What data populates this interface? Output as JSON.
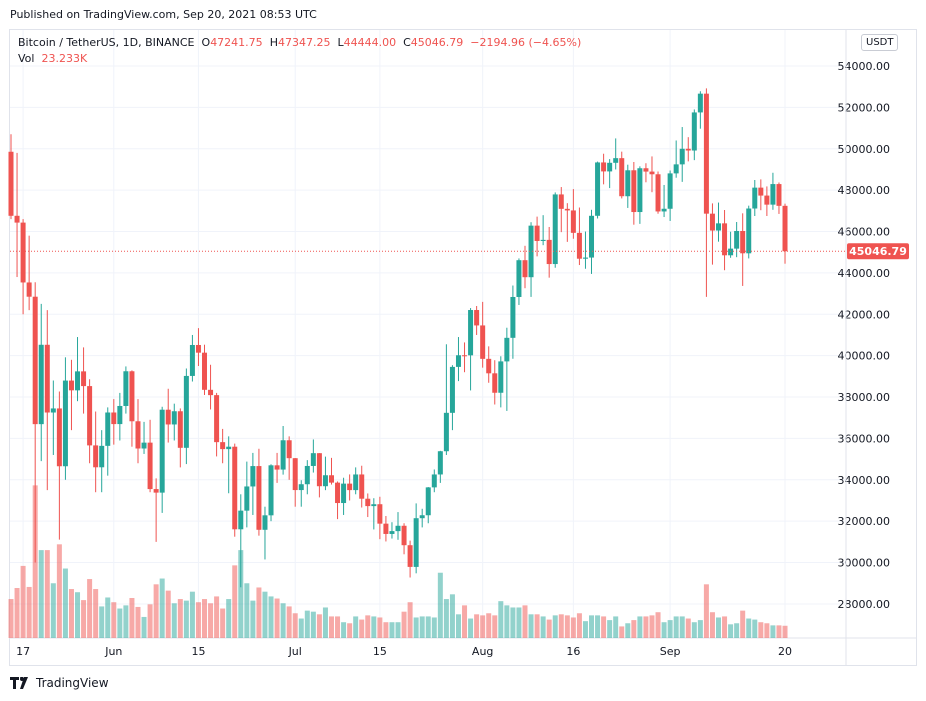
{
  "header": {
    "published": "Published on TradingView.com, Sep 20, 2021 08:53 UTC"
  },
  "legend": {
    "symbol": "Bitcoin / TetherUS, 1D, BINANCE",
    "o_label": "O",
    "o": "47241.75",
    "h_label": "H",
    "h": "47347.25",
    "l_label": "L",
    "l": "44444.00",
    "c_label": "C",
    "c": "45046.79",
    "change": "−2194.96 (−4.65%)",
    "vol_label": "Vol",
    "vol": "23.233K"
  },
  "currency_button": "USDT",
  "last_price_label": "45046.79",
  "brand": "TradingView",
  "colors": {
    "up": "#26a69a",
    "down": "#ef5350",
    "grid": "#f0f3fa"
  },
  "chart_data": {
    "type": "candlestick",
    "title": "Bitcoin / TetherUS, 1D, BINANCE",
    "ylim": [
      26500,
      55000
    ],
    "y_ticks": [
      28000,
      30000,
      32000,
      34000,
      36000,
      38000,
      40000,
      42000,
      44000,
      46000,
      48000,
      50000,
      52000,
      54000
    ],
    "x_ticks": [
      {
        "date": "2021-05-17",
        "label": "17"
      },
      {
        "date": "2021-06-01",
        "label": "Jun"
      },
      {
        "date": "2021-06-15",
        "label": "15"
      },
      {
        "date": "2021-07-01",
        "label": "Jul"
      },
      {
        "date": "2021-07-15",
        "label": "15"
      },
      {
        "date": "2021-08-01",
        "label": "Aug"
      },
      {
        "date": "2021-08-16",
        "label": "16"
      },
      {
        "date": "2021-09-01",
        "label": "Sep"
      },
      {
        "date": "2021-09-20",
        "label": "20"
      }
    ],
    "grid": true,
    "last_price": 45046.79,
    "columns": [
      "date",
      "open",
      "high",
      "low",
      "close",
      "volume_k"
    ],
    "candles": [
      [
        "2021-05-15",
        49855,
        50700,
        46600,
        46760,
        74
      ],
      [
        "2021-05-16",
        46760,
        49800,
        43800,
        46431,
        95
      ],
      [
        "2021-05-17",
        46431,
        46600,
        42000,
        43538,
        137
      ],
      [
        "2021-05-18",
        43538,
        45800,
        42200,
        42849,
        97
      ],
      [
        "2021-05-19",
        42849,
        43546,
        30000,
        36690,
        290
      ],
      [
        "2021-05-20",
        36690,
        42500,
        34900,
        40526,
        167
      ],
      [
        "2021-05-21",
        40526,
        42200,
        33500,
        37252,
        167
      ],
      [
        "2021-05-22",
        37252,
        38800,
        35200,
        37449,
        104
      ],
      [
        "2021-05-23",
        37449,
        38270,
        31111,
        34655,
        178
      ],
      [
        "2021-05-24",
        34655,
        39920,
        34000,
        38796,
        132
      ],
      [
        "2021-05-25",
        38796,
        39800,
        36400,
        38324,
        93
      ],
      [
        "2021-05-26",
        38324,
        40900,
        37800,
        39241,
        87
      ],
      [
        "2021-05-27",
        39241,
        40400,
        37200,
        38529,
        72
      ],
      [
        "2021-05-28",
        38529,
        38860,
        34800,
        35663,
        112
      ],
      [
        "2021-05-29",
        35663,
        37300,
        33400,
        34605,
        93
      ],
      [
        "2021-05-30",
        34605,
        36400,
        33400,
        35641,
        60
      ],
      [
        "2021-05-31",
        35641,
        37500,
        34200,
        37253,
        77
      ],
      [
        "2021-06-01",
        37253,
        37900,
        35700,
        36693,
        68
      ],
      [
        "2021-06-02",
        36693,
        38200,
        35900,
        37568,
        56
      ],
      [
        "2021-06-03",
        37568,
        39480,
        37200,
        39246,
        62
      ],
      [
        "2021-06-04",
        39246,
        39290,
        35600,
        36829,
        76
      ],
      [
        "2021-06-05",
        36829,
        37900,
        34800,
        35513,
        59
      ],
      [
        "2021-06-06",
        35513,
        36800,
        35250,
        35796,
        40
      ],
      [
        "2021-06-07",
        35796,
        36900,
        33400,
        33552,
        64
      ],
      [
        "2021-06-08",
        33552,
        34070,
        31000,
        33380,
        102
      ],
      [
        "2021-06-09",
        33380,
        37530,
        32400,
        37388,
        113
      ],
      [
        "2021-06-10",
        37388,
        38400,
        35800,
        36675,
        90
      ],
      [
        "2021-06-11",
        36675,
        37680,
        35900,
        37313,
        66
      ],
      [
        "2021-06-12",
        37313,
        37450,
        34600,
        35546,
        74
      ],
      [
        "2021-06-13",
        35546,
        39380,
        34760,
        39020,
        71
      ],
      [
        "2021-06-14",
        39020,
        41000,
        38750,
        40516,
        88
      ],
      [
        "2021-06-15",
        40516,
        41330,
        39500,
        40144,
        68
      ],
      [
        "2021-06-16",
        40144,
        40530,
        38100,
        38349,
        74
      ],
      [
        "2021-06-17",
        38349,
        39560,
        37400,
        38092,
        66
      ],
      [
        "2021-06-18",
        38092,
        38200,
        35130,
        35820,
        79
      ],
      [
        "2021-06-19",
        35820,
        36460,
        34800,
        35483,
        56
      ],
      [
        "2021-06-20",
        35483,
        36100,
        33350,
        35600,
        74
      ],
      [
        "2021-06-21",
        35600,
        35750,
        31250,
        31608,
        138
      ],
      [
        "2021-06-22",
        31608,
        33300,
        28805,
        32509,
        167
      ],
      [
        "2021-06-23",
        32509,
        34880,
        31700,
        33678,
        104
      ],
      [
        "2021-06-24",
        33678,
        35300,
        32300,
        34663,
        71
      ],
      [
        "2021-06-25",
        34663,
        35500,
        31300,
        31584,
        96
      ],
      [
        "2021-06-26",
        31584,
        32700,
        30150,
        32283,
        88
      ],
      [
        "2021-06-27",
        32283,
        34750,
        32000,
        34700,
        79
      ],
      [
        "2021-06-28",
        34700,
        35300,
        33850,
        34494,
        75
      ],
      [
        "2021-06-29",
        34494,
        36600,
        34250,
        35911,
        66
      ],
      [
        "2021-06-30",
        35911,
        36100,
        34000,
        35045,
        60
      ],
      [
        "2021-07-01",
        35045,
        35050,
        32700,
        33504,
        47
      ],
      [
        "2021-07-02",
        33504,
        33980,
        32700,
        33786,
        37
      ],
      [
        "2021-07-03",
        33786,
        34950,
        33300,
        34669,
        52
      ],
      [
        "2021-07-04",
        34669,
        35950,
        34350,
        35287,
        50
      ],
      [
        "2021-07-05",
        35287,
        35290,
        33150,
        33690,
        45
      ],
      [
        "2021-07-06",
        33690,
        35120,
        33500,
        34220,
        58
      ],
      [
        "2021-07-07",
        34220,
        35060,
        33770,
        33863,
        41
      ],
      [
        "2021-07-08",
        33863,
        33920,
        32100,
        32877,
        41
      ],
      [
        "2021-07-09",
        32877,
        34100,
        32300,
        33815,
        30
      ],
      [
        "2021-07-10",
        33815,
        34260,
        33000,
        33502,
        28
      ],
      [
        "2021-07-11",
        33502,
        34600,
        33300,
        34258,
        41
      ],
      [
        "2021-07-12",
        34258,
        34680,
        32660,
        33086,
        35
      ],
      [
        "2021-07-13",
        33086,
        33340,
        32200,
        32729,
        43
      ],
      [
        "2021-07-14",
        32729,
        33110,
        31600,
        32820,
        41
      ],
      [
        "2021-07-15",
        32820,
        33180,
        31130,
        31880,
        39
      ],
      [
        "2021-07-16",
        31880,
        32250,
        31020,
        31383,
        30
      ],
      [
        "2021-07-17",
        31383,
        31950,
        31160,
        31520,
        30
      ],
      [
        "2021-07-18",
        31520,
        32440,
        31100,
        31778,
        30
      ],
      [
        "2021-07-19",
        31778,
        31900,
        30400,
        30839,
        50
      ],
      [
        "2021-07-20",
        30839,
        31060,
        29278,
        29790,
        68
      ],
      [
        "2021-07-21",
        29790,
        32860,
        29480,
        32144,
        39
      ],
      [
        "2021-07-22",
        32144,
        32600,
        31700,
        32287,
        41
      ],
      [
        "2021-07-23",
        32287,
        33650,
        31900,
        33634,
        41
      ],
      [
        "2021-07-24",
        33634,
        34500,
        33400,
        34258,
        39
      ],
      [
        "2021-07-25",
        34258,
        35400,
        33850,
        35381,
        124
      ],
      [
        "2021-07-26",
        35381,
        40550,
        35200,
        37237,
        74
      ],
      [
        "2021-07-27",
        37237,
        39540,
        36400,
        39457,
        83
      ],
      [
        "2021-07-28",
        39457,
        40900,
        38770,
        40019,
        45
      ],
      [
        "2021-07-29",
        40019,
        40640,
        39200,
        40016,
        62
      ],
      [
        "2021-07-30",
        40016,
        42300,
        38320,
        42206,
        37
      ],
      [
        "2021-07-31",
        42206,
        42400,
        41000,
        41461,
        45
      ],
      [
        "2021-08-01",
        41461,
        42600,
        39420,
        39846,
        43
      ],
      [
        "2021-08-02",
        39846,
        40450,
        38690,
        39147,
        47
      ],
      [
        "2021-08-03",
        39147,
        39780,
        37640,
        38207,
        43
      ],
      [
        "2021-08-04",
        38207,
        39970,
        37500,
        39723,
        70
      ],
      [
        "2021-08-05",
        39723,
        41350,
        37330,
        40862,
        62
      ],
      [
        "2021-08-06",
        40862,
        43390,
        39850,
        42836,
        58
      ],
      [
        "2021-08-07",
        42836,
        44700,
        42450,
        44614,
        58
      ],
      [
        "2021-08-08",
        44614,
        45310,
        43260,
        43792,
        62
      ],
      [
        "2021-08-09",
        43792,
        46450,
        42840,
        46284,
        45
      ],
      [
        "2021-08-10",
        46284,
        46720,
        44800,
        45543,
        45
      ],
      [
        "2021-08-11",
        45543,
        46790,
        45340,
        45596,
        41
      ],
      [
        "2021-08-12",
        45596,
        46220,
        43770,
        44428,
        35
      ],
      [
        "2021-08-13",
        44428,
        47890,
        44250,
        47793,
        43
      ],
      [
        "2021-08-14",
        47793,
        48150,
        45970,
        47096,
        45
      ],
      [
        "2021-08-15",
        47096,
        47370,
        45500,
        47019,
        43
      ],
      [
        "2021-08-16",
        47019,
        48050,
        45650,
        45936,
        39
      ],
      [
        "2021-08-17",
        45936,
        47160,
        44380,
        44686,
        47
      ],
      [
        "2021-08-18",
        44686,
        46000,
        44200,
        44741,
        32
      ],
      [
        "2021-08-19",
        44741,
        47050,
        43950,
        46760,
        43
      ],
      [
        "2021-08-20",
        46760,
        49380,
        46630,
        49339,
        43
      ],
      [
        "2021-08-21",
        49339,
        49760,
        48280,
        48905,
        41
      ],
      [
        "2021-08-22",
        48905,
        49500,
        48100,
        49321,
        34
      ],
      [
        "2021-08-23",
        49321,
        50500,
        49000,
        49546,
        41
      ],
      [
        "2021-08-24",
        49546,
        49860,
        47600,
        47706,
        22
      ],
      [
        "2021-08-25",
        47706,
        49230,
        47140,
        48960,
        28
      ],
      [
        "2021-08-26",
        48960,
        49360,
        46330,
        46942,
        34
      ],
      [
        "2021-08-27",
        46942,
        49150,
        46370,
        49058,
        41
      ],
      [
        "2021-08-28",
        49058,
        49300,
        48380,
        48897,
        41
      ],
      [
        "2021-08-29",
        48897,
        49630,
        47900,
        48767,
        43
      ],
      [
        "2021-08-30",
        48767,
        48900,
        46860,
        46970,
        49
      ],
      [
        "2021-08-31",
        46970,
        48250,
        46700,
        47100,
        30
      ],
      [
        "2021-09-01",
        47100,
        48950,
        46510,
        48810,
        34
      ],
      [
        "2021-09-02",
        48810,
        50400,
        48600,
        49246,
        41
      ],
      [
        "2021-09-03",
        49246,
        51050,
        48400,
        49999,
        41
      ],
      [
        "2021-09-04",
        49999,
        50560,
        49390,
        49915,
        37
      ],
      [
        "2021-09-05",
        49915,
        51900,
        49450,
        51756,
        30
      ],
      [
        "2021-09-06",
        51756,
        52780,
        50970,
        52663,
        34
      ],
      [
        "2021-09-07",
        52663,
        52920,
        42843,
        46863,
        102
      ],
      [
        "2021-09-08",
        46863,
        47360,
        44400,
        46048,
        49
      ],
      [
        "2021-09-09",
        46048,
        47400,
        45510,
        46395,
        39
      ],
      [
        "2021-09-10",
        46395,
        47040,
        44130,
        44851,
        41
      ],
      [
        "2021-09-11",
        44851,
        45990,
        44730,
        45173,
        26
      ],
      [
        "2021-09-12",
        45173,
        46460,
        44760,
        46026,
        28
      ],
      [
        "2021-09-13",
        46026,
        46880,
        43370,
        44947,
        52
      ],
      [
        "2021-09-14",
        44947,
        47250,
        44700,
        47112,
        37
      ],
      [
        "2021-09-15",
        47112,
        48490,
        46750,
        48121,
        35
      ],
      [
        "2021-09-16",
        48121,
        48520,
        47030,
        47737,
        30
      ],
      [
        "2021-09-17",
        47737,
        48180,
        46750,
        47299,
        28
      ],
      [
        "2021-09-18",
        47299,
        48840,
        47050,
        48293,
        24
      ],
      [
        "2021-09-19",
        48293,
        48370,
        46850,
        47241,
        24
      ],
      [
        "2021-09-20",
        47241.75,
        47347.25,
        44444,
        45046.79,
        23.233
      ]
    ]
  }
}
